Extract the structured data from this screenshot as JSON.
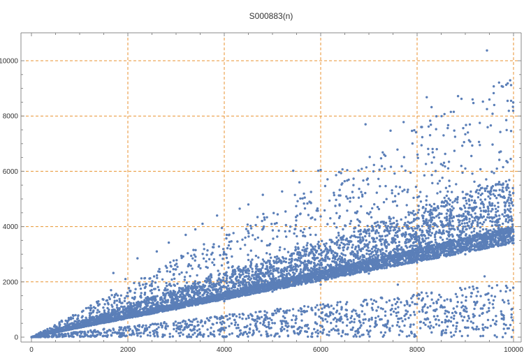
{
  "chart_data": {
    "type": "scatter",
    "title": "S000883(n)",
    "xlabel": "",
    "ylabel": "",
    "xlim": [
      0,
      10000
    ],
    "ylim": [
      0,
      10000
    ],
    "x_ticks": [
      0,
      2000,
      4000,
      6000,
      8000,
      10000
    ],
    "y_ticks": [
      0,
      2000,
      4000,
      6000,
      8000,
      10000
    ],
    "x_tick_labels": [
      "0",
      "2000",
      "4000",
      "6000",
      "8000",
      "10000"
    ],
    "y_tick_labels": [
      "0",
      "2000",
      "4000",
      "6000",
      "8000",
      "10000"
    ],
    "grid": true,
    "grid_color": "#e8922f",
    "point_color": "#5b7fb8",
    "axis_color": "#888888",
    "series": [
      {
        "n_points": 10000,
        "x_range": [
          1,
          10000
        ],
        "trend": "dense band along y ≈ 0.36·n with upper spread to ≈ 0.9·n and a sparse lower band y ≈ 0.05·n",
        "points": [
          [
            9450,
            10370
          ],
          [
            9930,
            9290
          ],
          [
            9700,
            9210
          ],
          [
            9850,
            9130
          ],
          [
            9780,
            9060
          ],
          [
            8850,
            8720
          ],
          [
            8200,
            8680
          ],
          [
            8920,
            8620
          ],
          [
            9150,
            8600
          ],
          [
            8300,
            8320
          ],
          [
            9600,
            8400
          ],
          [
            8700,
            8150
          ],
          [
            9450,
            8250
          ],
          [
            8400,
            7990
          ],
          [
            9950,
            8550
          ],
          [
            6930,
            7700
          ],
          [
            7720,
            7780
          ],
          [
            9300,
            7750
          ],
          [
            7450,
            7470
          ],
          [
            8550,
            7300
          ],
          [
            9850,
            7850
          ],
          [
            8100,
            7600
          ],
          [
            6000,
            6050
          ],
          [
            5950,
            6020
          ],
          [
            6550,
            6040
          ],
          [
            5430,
            6020
          ],
          [
            6320,
            5860
          ],
          [
            5200,
            5270
          ],
          [
            4800,
            5150
          ],
          [
            5560,
            5600
          ],
          [
            4320,
            4650
          ],
          [
            3950,
            3950
          ],
          [
            3850,
            4400
          ],
          [
            4500,
            4800
          ],
          [
            3550,
            4100
          ],
          [
            3200,
            3700
          ],
          [
            2200,
            2850
          ],
          [
            1700,
            2320
          ],
          [
            2850,
            3420
          ],
          [
            1950,
            2100
          ],
          [
            1650,
            1700
          ],
          [
            2600,
            3100
          ],
          [
            3400,
            3900
          ],
          [
            4050,
            3700
          ],
          [
            6800,
            4200
          ],
          [
            7500,
            4900
          ],
          [
            8600,
            5400
          ],
          [
            9300,
            5500
          ],
          [
            7000,
            4450
          ],
          [
            6200,
            4300
          ],
          [
            5050,
            4100
          ],
          [
            4700,
            3600
          ],
          [
            5800,
            4850
          ],
          [
            7800,
            5250
          ],
          [
            9000,
            6100
          ],
          [
            2000,
            700
          ],
          [
            3000,
            1000
          ],
          [
            4000,
            1300
          ],
          [
            5000,
            1650
          ],
          [
            6000,
            1900
          ],
          [
            7000,
            2300
          ],
          [
            8000,
            2700
          ],
          [
            9000,
            3000
          ],
          [
            10000,
            3400
          ],
          [
            9500,
            3350
          ],
          [
            8500,
            3050
          ],
          [
            7500,
            2800
          ],
          [
            6500,
            2400
          ],
          [
            5500,
            2050
          ],
          [
            4500,
            1700
          ],
          [
            3500,
            1300
          ],
          [
            2500,
            950
          ],
          [
            1500,
            600
          ],
          [
            1000,
            400
          ],
          [
            500,
            200
          ],
          [
            7000,
            600
          ],
          [
            8000,
            1500
          ],
          [
            9000,
            1100
          ],
          [
            9800,
            300
          ],
          [
            6300,
            250
          ],
          [
            5000,
            800
          ],
          [
            8800,
            200
          ],
          [
            7600,
            1900
          ],
          [
            9400,
            2200
          ],
          [
            8200,
            900
          ]
        ]
      }
    ]
  }
}
